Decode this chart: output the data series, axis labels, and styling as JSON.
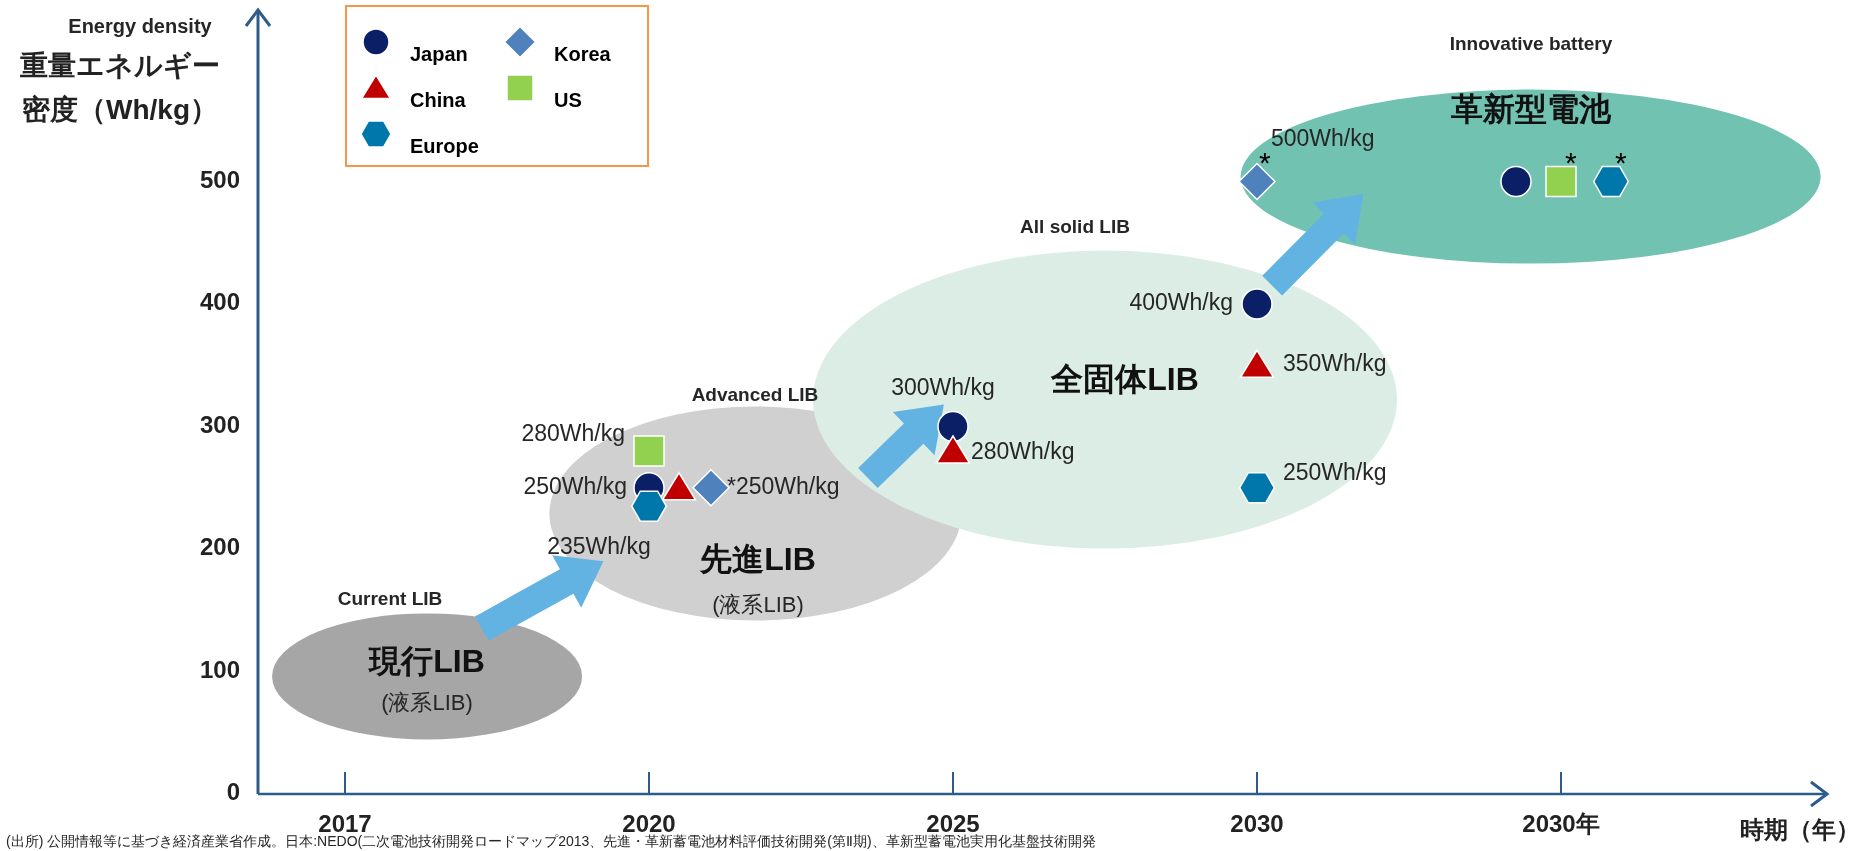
{
  "chart_data": {
    "type": "scatter",
    "ylabel": "重量エネルギー密度（Wh/kg）",
    "xlabel": "時期（年）",
    "categories": [
      "2017",
      "2020",
      "2025",
      "2030",
      "2030年"
    ],
    "series": [
      {
        "name": "Japan",
        "color": "#0b1f66",
        "marker": "circle",
        "values": [
          null,
          250,
          300,
          400,
          500
        ],
        "value_labels": [
          null,
          "250Wh/kg",
          "300Wh/kg",
          "400Wh/kg",
          null
        ]
      },
      {
        "name": "China",
        "color": "#c00000",
        "marker": "triangle",
        "values": [
          null,
          250,
          280,
          350,
          null
        ],
        "value_labels": [
          null,
          null,
          "280Wh/kg",
          "350Wh/kg",
          null
        ]
      },
      {
        "name": "Europe",
        "color": "#0077aa",
        "values": [
          null,
          235,
          null,
          250,
          500
        ],
        "value_labels": [
          null,
          "235Wh/kg",
          null,
          "250Wh/kg",
          "*"
        ]
      },
      {
        "name": "Korea",
        "color": "#4f81bd",
        "marker": "diamond",
        "values": [
          null,
          250,
          null,
          500,
          null
        ],
        "value_labels": [
          null,
          "*250Wh/kg",
          null,
          "*",
          null
        ]
      },
      {
        "name": "US",
        "color": "#92d050",
        "marker": "square",
        "values": [
          null,
          280,
          null,
          null,
          500
        ],
        "value_labels": [
          null,
          "280Wh/kg",
          null,
          null,
          "*"
        ]
      }
    ],
    "ylim": [
      0,
      640
    ],
    "yticks": [
      0,
      100,
      200,
      300,
      400,
      500
    ],
    "legend": "top left",
    "annotations": [
      "Energy density",
      "Current LIB",
      "現行LIB",
      "(液系LIB)",
      "Advanced LIB",
      "先進LIB",
      "(液系LIB)",
      "All solid LIB",
      "全固体LIB",
      "Innovative battery",
      "革新型電池",
      "500Wh/kg",
      "(出所) 公開情報等に基づき経済産業省作成。日本:NEDO(二次電池技術開発ロードマップ2013、先進・革新蓄電池材料評価技術開発(第Ⅱ期)、革新型蓄電池実用化基盤技術開発"
    ]
  }
}
